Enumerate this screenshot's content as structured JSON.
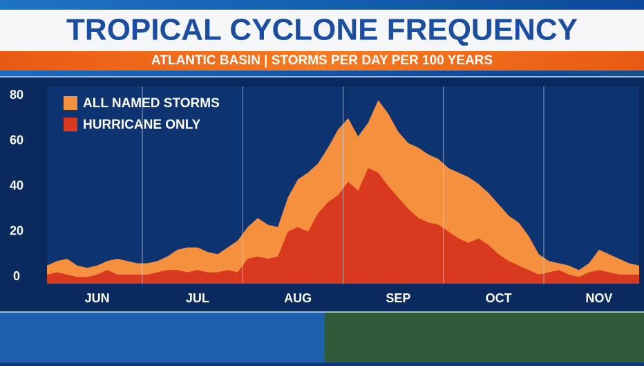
{
  "chart_data": {
    "type": "area",
    "title": "TROPICAL CYCLONE FREQUENCY",
    "subtitle": "ATLANTIC BASIN | STORMS PER DAY PER 100 YEARS",
    "categories": [
      null,
      null,
      null,
      null,
      null,
      "JUN",
      null,
      null,
      null,
      null,
      null,
      null,
      null,
      null,
      null,
      "JUL",
      null,
      null,
      null,
      null,
      null,
      null,
      null,
      null,
      null,
      "AUG",
      null,
      null,
      null,
      null,
      null,
      null,
      null,
      null,
      null,
      "SEP",
      null,
      null,
      null,
      null,
      null,
      null,
      null,
      null,
      null,
      "OCT",
      null,
      null,
      null,
      null,
      null,
      null,
      null,
      null,
      null,
      "NOV",
      null,
      null,
      null,
      null
    ],
    "series": [
      {
        "name": "ALL NAMED STORMS",
        "color": "#f5913e",
        "values": [
          5,
          7,
          8,
          5,
          4,
          5,
          7,
          8,
          7,
          6,
          6,
          7,
          9,
          12,
          13,
          13,
          11,
          10,
          13,
          16,
          22,
          26,
          23,
          22,
          35,
          43,
          46,
          50,
          57,
          65,
          70,
          62,
          68,
          78,
          72,
          64,
          59,
          57,
          54,
          52,
          48,
          46,
          44,
          41,
          37,
          32,
          27,
          24,
          18,
          10,
          7,
          6,
          5,
          3,
          6,
          12,
          10,
          8,
          6,
          5
        ]
      },
      {
        "name": "HURRICANE ONLY",
        "color": "#d8391f",
        "values": [
          1,
          2,
          1,
          0,
          0,
          1,
          3,
          1,
          1,
          1,
          1,
          2,
          3,
          3,
          2,
          3,
          2,
          2,
          3,
          2,
          8,
          9,
          8,
          9,
          20,
          22,
          20,
          28,
          33,
          36,
          42,
          38,
          48,
          46,
          40,
          35,
          30,
          26,
          24,
          23,
          20,
          17,
          15,
          17,
          14,
          10,
          7,
          5,
          3,
          1,
          2,
          3,
          1,
          0,
          2,
          3,
          2,
          1,
          1,
          1
        ]
      }
    ],
    "ylim": [
      -3,
      84
    ],
    "yticks": [
      0,
      20,
      40,
      60,
      80
    ],
    "legend": "upper-left"
  }
}
